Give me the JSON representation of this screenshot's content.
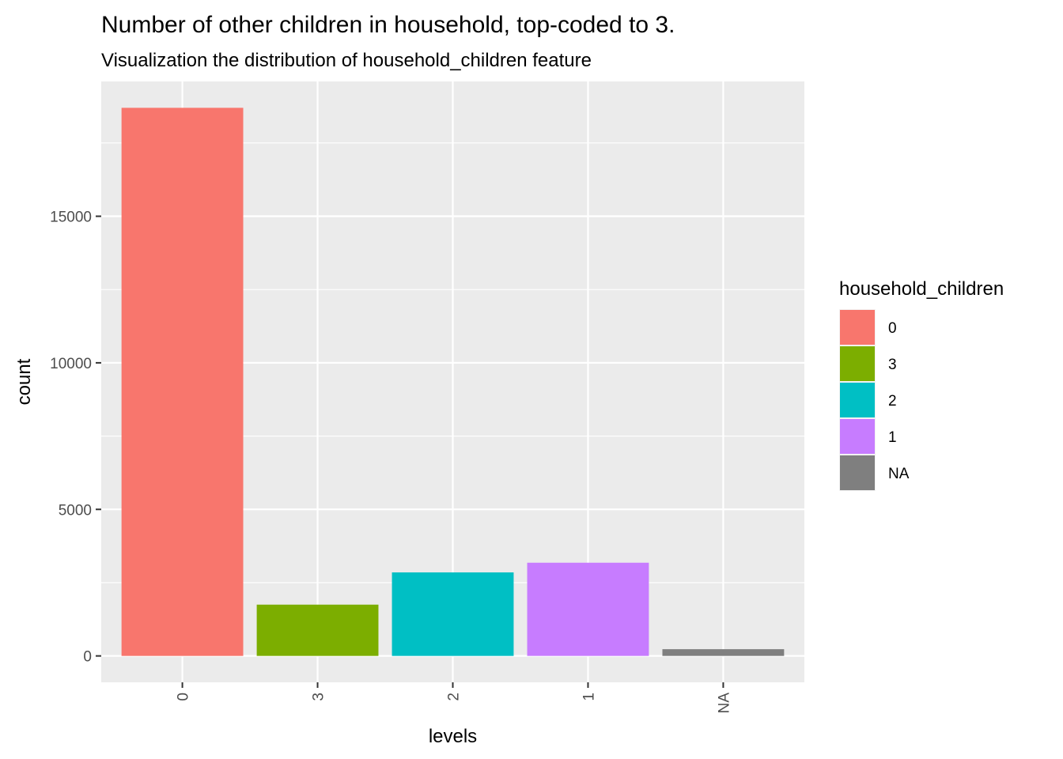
{
  "chart_data": {
    "type": "bar",
    "title": "Number of other children in household, top-coded to 3.",
    "subtitle": "Visualization the distribution of household_children feature",
    "xlabel": "levels",
    "ylabel": "count",
    "categories": [
      "0",
      "3",
      "2",
      "1",
      "NA"
    ],
    "values": [
      18700,
      1750,
      2850,
      3180,
      230
    ],
    "colors": [
      "#F8766D",
      "#7CAE00",
      "#00BFC4",
      "#C77CFF",
      "#7F7F7F"
    ],
    "ylim": [
      -900,
      19600
    ],
    "yticks": [
      0,
      5000,
      10000,
      15000
    ],
    "ytick_labels": [
      "0",
      "5000",
      "10000",
      "15000"
    ],
    "grid": true,
    "panel_background": "#EBEBEB",
    "x_tick_rotation": -90,
    "legend": {
      "title": "household_children",
      "placement": "right",
      "items": [
        {
          "label": "0",
          "color": "#F8766D"
        },
        {
          "label": "3",
          "color": "#7CAE00"
        },
        {
          "label": "2",
          "color": "#00BFC4"
        },
        {
          "label": "1",
          "color": "#C77CFF"
        },
        {
          "label": "NA",
          "color": "#7F7F7F"
        }
      ]
    }
  }
}
